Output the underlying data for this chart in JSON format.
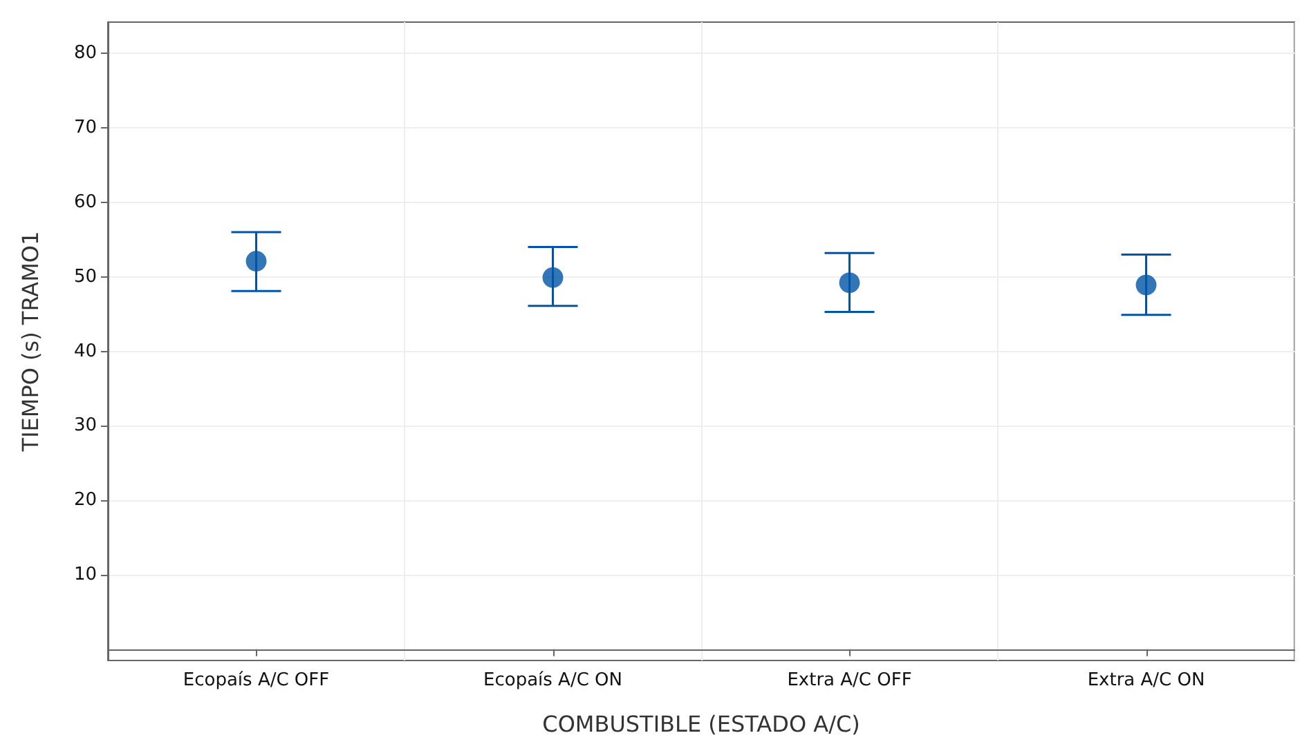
{
  "chart_data": {
    "type": "scatter",
    "xlabel": "COMBUSTIBLE (ESTADO A/C)",
    "ylabel": "TIEMPO (s) TRAMO1",
    "categories": [
      "Ecopaís A/C OFF",
      "Ecopaís A/C ON",
      "Extra A/C OFF",
      "Extra A/C ON"
    ],
    "values": [
      52.1,
      49.9,
      49.2,
      48.9
    ],
    "errors": [
      [
        48.1,
        56.0
      ],
      [
        46.1,
        54.0
      ],
      [
        45.3,
        53.2
      ],
      [
        44.9,
        53.0
      ]
    ],
    "color": "#0054a6",
    "marker": "circle",
    "grid": true,
    "ylim": [
      -1.5,
      84.2
    ],
    "yticks": [
      10,
      20,
      30,
      40,
      50,
      60,
      70,
      80
    ]
  }
}
